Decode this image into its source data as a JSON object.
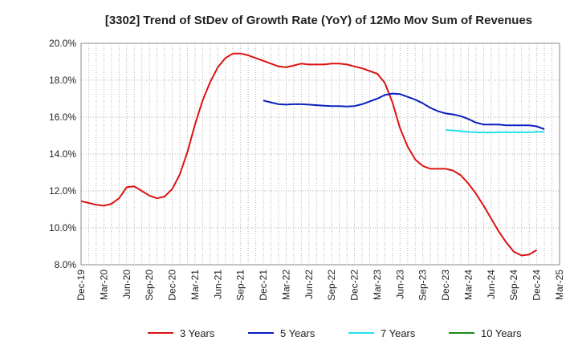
{
  "chart_data": {
    "type": "line",
    "title": "[3302]  Trend of StDev of Growth Rate (YoY) of 12Mo Mov Sum of Revenues",
    "xlabel": "",
    "ylabel": "",
    "ylim": [
      8.0,
      20.0
    ],
    "y_ticks": [
      8.0,
      10.0,
      12.0,
      14.0,
      16.0,
      18.0,
      20.0
    ],
    "y_tick_labels": [
      "8.0%",
      "10.0%",
      "12.0%",
      "14.0%",
      "16.0%",
      "18.0%",
      "20.0%"
    ],
    "x_tick_labels": [
      "Dec-19",
      "Mar-20",
      "Jun-20",
      "Sep-20",
      "Dec-20",
      "Mar-21",
      "Jun-21",
      "Sep-21",
      "Dec-21",
      "Mar-22",
      "Jun-22",
      "Sep-22",
      "Dec-22",
      "Mar-23",
      "Jun-23",
      "Sep-23",
      "Dec-23",
      "Mar-24",
      "Jun-24",
      "Sep-24",
      "Dec-24",
      "Mar-25"
    ],
    "grid": true,
    "legend_position": "bottom",
    "series": [
      {
        "name": "3 Years",
        "color": "#dd1111",
        "start_index": 0,
        "values": [
          11.45,
          11.35,
          11.25,
          11.2,
          11.3,
          11.6,
          12.2,
          12.25,
          12.0,
          11.75,
          11.6,
          11.7,
          12.1,
          12.9,
          14.1,
          15.6,
          16.9,
          17.9,
          18.7,
          19.2,
          19.45,
          19.45,
          19.35,
          19.2,
          19.05,
          18.9,
          18.75,
          18.7,
          18.8,
          18.9,
          18.85,
          18.85,
          18.85,
          18.9,
          18.9,
          18.85,
          18.75,
          18.65,
          18.5,
          18.35,
          17.85,
          16.8,
          15.4,
          14.4,
          13.7,
          13.35,
          13.2,
          13.2,
          13.2,
          13.1,
          12.85,
          12.4,
          11.85,
          11.2,
          10.5,
          9.8,
          9.2,
          8.7,
          8.5,
          8.55,
          8.8
        ]
      },
      {
        "name": "5 Years",
        "color": "#0a1fbf",
        "start_index": 24,
        "values": [
          16.9,
          16.8,
          16.7,
          16.68,
          16.7,
          16.7,
          16.68,
          16.65,
          16.62,
          16.6,
          16.6,
          16.58,
          16.6,
          16.7,
          16.85,
          17.0,
          17.2,
          17.28,
          17.25,
          17.1,
          16.95,
          16.75,
          16.5,
          16.32,
          16.2,
          16.15,
          16.05,
          15.9,
          15.7,
          15.6,
          15.6,
          15.6,
          15.55,
          15.55,
          15.55,
          15.55,
          15.5,
          15.35
        ]
      },
      {
        "name": "7 Years",
        "color": "#22e0e8",
        "start_index": 48,
        "values": [
          15.3,
          15.28,
          15.24,
          15.2,
          15.18,
          15.17,
          15.17,
          15.18,
          15.18,
          15.18,
          15.18,
          15.18,
          15.2,
          15.2
        ]
      },
      {
        "name": "10 Years",
        "color": "#1a8a1a",
        "start_index": 0,
        "values": []
      }
    ]
  }
}
